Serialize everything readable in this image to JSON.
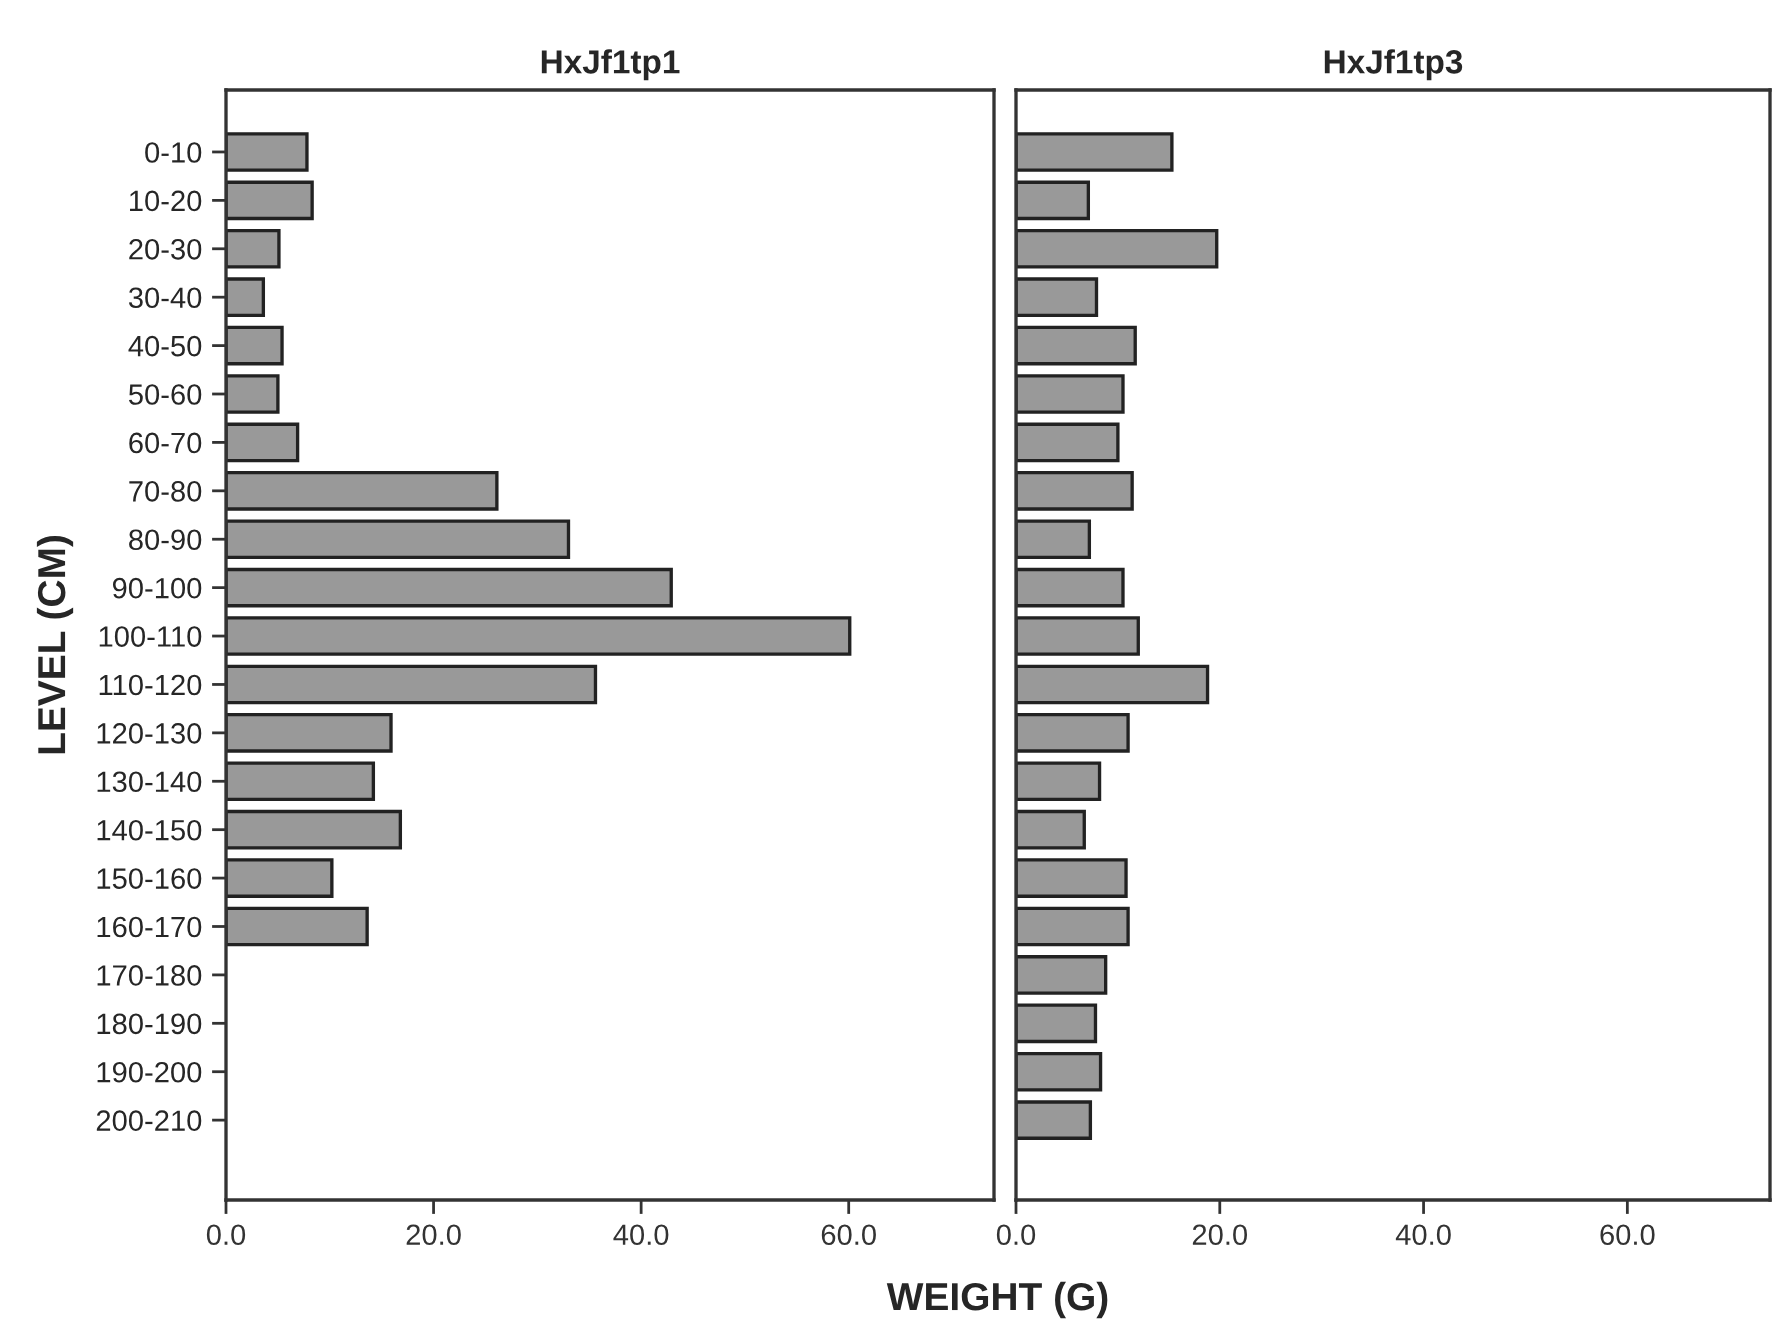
{
  "chart_data": [
    {
      "type": "bar",
      "orientation": "horizontal",
      "title": "HxJf1tp1",
      "xlabel": "WEIGHT (G)",
      "ylabel": "LEVEL (CM)",
      "categories": [
        "0-10",
        "10-20",
        "20-30",
        "30-40",
        "40-50",
        "50-60",
        "60-70",
        "70-80",
        "80-90",
        "90-100",
        "100-110",
        "110-120",
        "120-130",
        "130-140",
        "140-150",
        "150-160",
        "160-170",
        "170-180",
        "180-190",
        "190-200",
        "200-210"
      ],
      "values": [
        7.8,
        8.3,
        5.1,
        3.6,
        5.4,
        5.0,
        6.9,
        26.1,
        33.0,
        42.9,
        60.1,
        35.6,
        15.9,
        14.2,
        16.8,
        10.2,
        13.6,
        null,
        null,
        null,
        null
      ],
      "color": "#999999",
      "xlim": [
        0,
        74
      ],
      "xticks": [
        {
          "value": 0,
          "label": "0.0"
        },
        {
          "value": 20,
          "label": "20.0"
        },
        {
          "value": 40,
          "label": "40.0"
        },
        {
          "value": 60,
          "label": "60.0"
        }
      ]
    },
    {
      "type": "bar",
      "orientation": "horizontal",
      "title": "HxJf1tp3",
      "tick_labels": "x",
      "categories": [
        null,
        null,
        null,
        null,
        null,
        null,
        null,
        null,
        null,
        null,
        null,
        null,
        null,
        null,
        null,
        null,
        null,
        null,
        null,
        null,
        null
      ],
      "values": [
        15.3,
        7.1,
        19.7,
        7.9,
        11.7,
        10.5,
        10.0,
        11.4,
        7.2,
        10.5,
        12.0,
        18.8,
        11.0,
        8.2,
        6.7,
        10.8,
        11.0,
        8.8,
        7.8,
        8.3,
        7.3
      ],
      "color": "#999999",
      "xlim": [
        0,
        74
      ],
      "xticks": [
        {
          "value": 0,
          "label": "0.0"
        },
        {
          "value": 20,
          "label": "20.0"
        },
        {
          "value": 40,
          "label": "40.0"
        },
        {
          "value": 60,
          "label": "60.0"
        }
      ]
    }
  ]
}
